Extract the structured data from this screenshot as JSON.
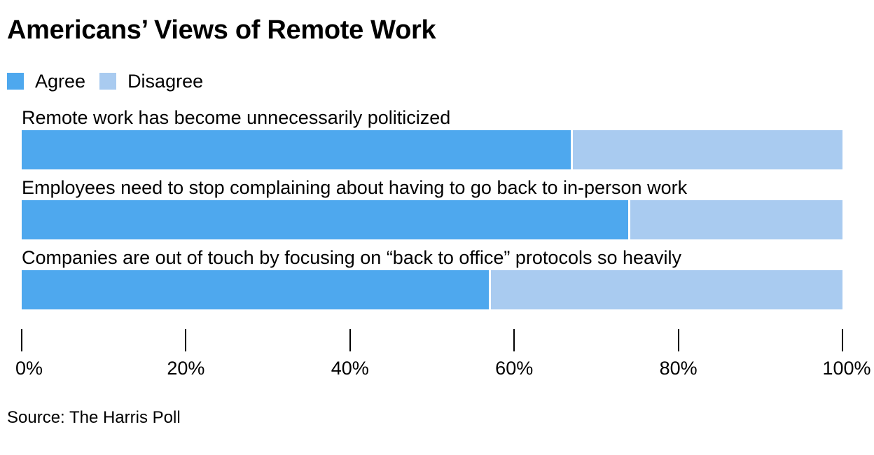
{
  "chart_data": {
    "type": "bar",
    "orientation": "horizontal",
    "stacked": true,
    "title": "Americans’ Views of Remote Work",
    "categories": [
      "Remote work has become unnecessarily politicized",
      "Employees need to stop complaining about having to go back to in-person work",
      "Companies are out of touch by focusing on “back to office” protocols so heavily"
    ],
    "series": [
      {
        "name": "Agree",
        "color": "#4ea8ee",
        "values": [
          67,
          74,
          57
        ]
      },
      {
        "name": "Disagree",
        "color": "#a9cbf0",
        "values": [
          33,
          26,
          43
        ]
      }
    ],
    "xlim": [
      0,
      100
    ],
    "x_ticks": [
      "0%",
      "20%",
      "40%",
      "60%",
      "80%",
      "100%"
    ],
    "legend": "top-left",
    "grid": false,
    "source": "Source: The Harris Poll"
  }
}
